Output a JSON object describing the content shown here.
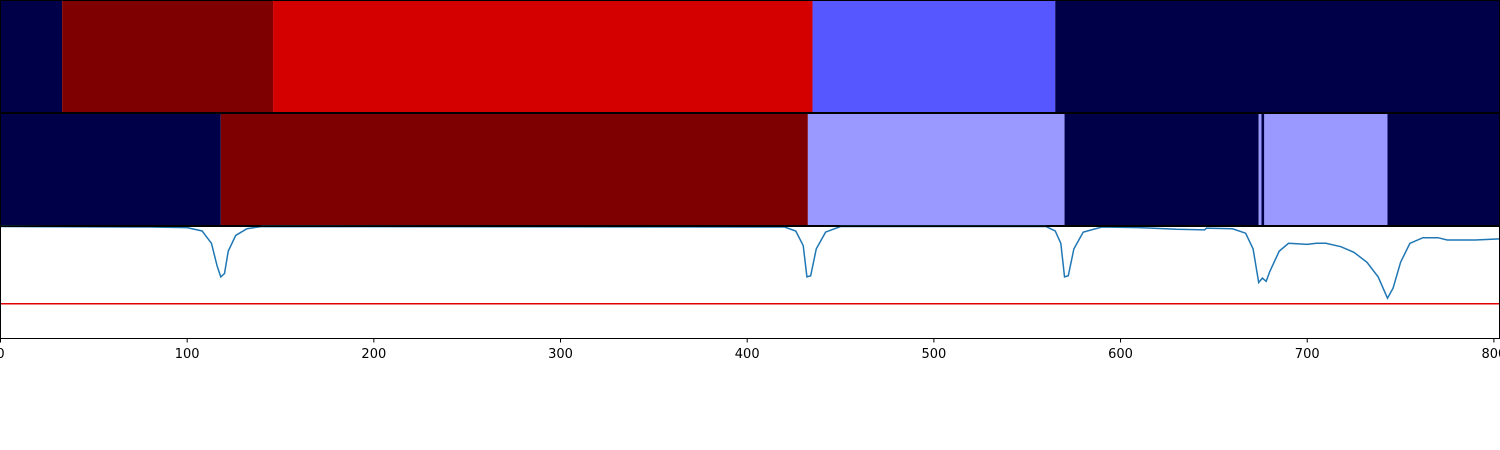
{
  "chart_data": {
    "type": "segments",
    "xlim": [
      0,
      803
    ],
    "xticks": [
      0,
      100,
      200,
      300,
      400,
      500,
      600,
      700,
      800
    ],
    "rows": [
      {
        "segments": [
          {
            "start": 0,
            "end": 33,
            "color": "#000048"
          },
          {
            "start": 33,
            "end": 146,
            "color": "#7f0000"
          },
          {
            "start": 146,
            "end": 435,
            "color": "#d40000"
          },
          {
            "start": 435,
            "end": 565,
            "color": "#5757ff"
          },
          {
            "start": 565,
            "end": 803,
            "color": "#000048"
          }
        ]
      },
      {
        "segments": [
          {
            "start": 0,
            "end": 118,
            "color": "#000048"
          },
          {
            "start": 118,
            "end": 432.5,
            "color": "#7f0000"
          },
          {
            "start": 432.5,
            "end": 570,
            "color": "#9999ff"
          },
          {
            "start": 570,
            "end": 674,
            "color": "#000048"
          },
          {
            "start": 674,
            "end": 675.5,
            "color": "#9999ff"
          },
          {
            "start": 675.5,
            "end": 677,
            "color": "#000048"
          },
          {
            "start": 677,
            "end": 743,
            "color": "#9999ff"
          },
          {
            "start": 743,
            "end": 803,
            "color": "#000048"
          }
        ]
      }
    ],
    "line": {
      "type": "line",
      "ylim": [
        0,
        1
      ],
      "color": "#1f77b4",
      "threshold": 0.31,
      "threshold_color": "#e00000",
      "x": [
        0,
        80,
        100,
        108,
        113,
        116,
        118,
        120,
        122,
        126,
        132,
        140,
        420,
        426,
        430,
        432,
        434,
        437,
        442,
        450,
        560,
        565,
        568,
        570,
        572,
        575,
        580,
        590,
        610,
        630,
        645,
        646,
        660,
        667,
        671,
        674,
        676,
        678,
        680,
        685,
        690,
        700,
        705,
        710,
        718,
        725,
        732,
        738,
        743,
        746,
        750,
        755,
        762,
        770,
        775,
        790,
        803
      ],
      "values": [
        1,
        0.995,
        0.99,
        0.96,
        0.85,
        0.65,
        0.55,
        0.58,
        0.78,
        0.92,
        0.98,
        1,
        0.995,
        0.96,
        0.83,
        0.55,
        0.56,
        0.8,
        0.95,
        1,
        1,
        0.96,
        0.85,
        0.55,
        0.56,
        0.8,
        0.95,
        0.995,
        0.99,
        0.975,
        0.97,
        0.985,
        0.98,
        0.94,
        0.8,
        0.5,
        0.54,
        0.51,
        0.6,
        0.78,
        0.85,
        0.84,
        0.85,
        0.85,
        0.82,
        0.77,
        0.68,
        0.55,
        0.36,
        0.45,
        0.68,
        0.85,
        0.9,
        0.9,
        0.88,
        0.88,
        0.89
      ]
    }
  }
}
